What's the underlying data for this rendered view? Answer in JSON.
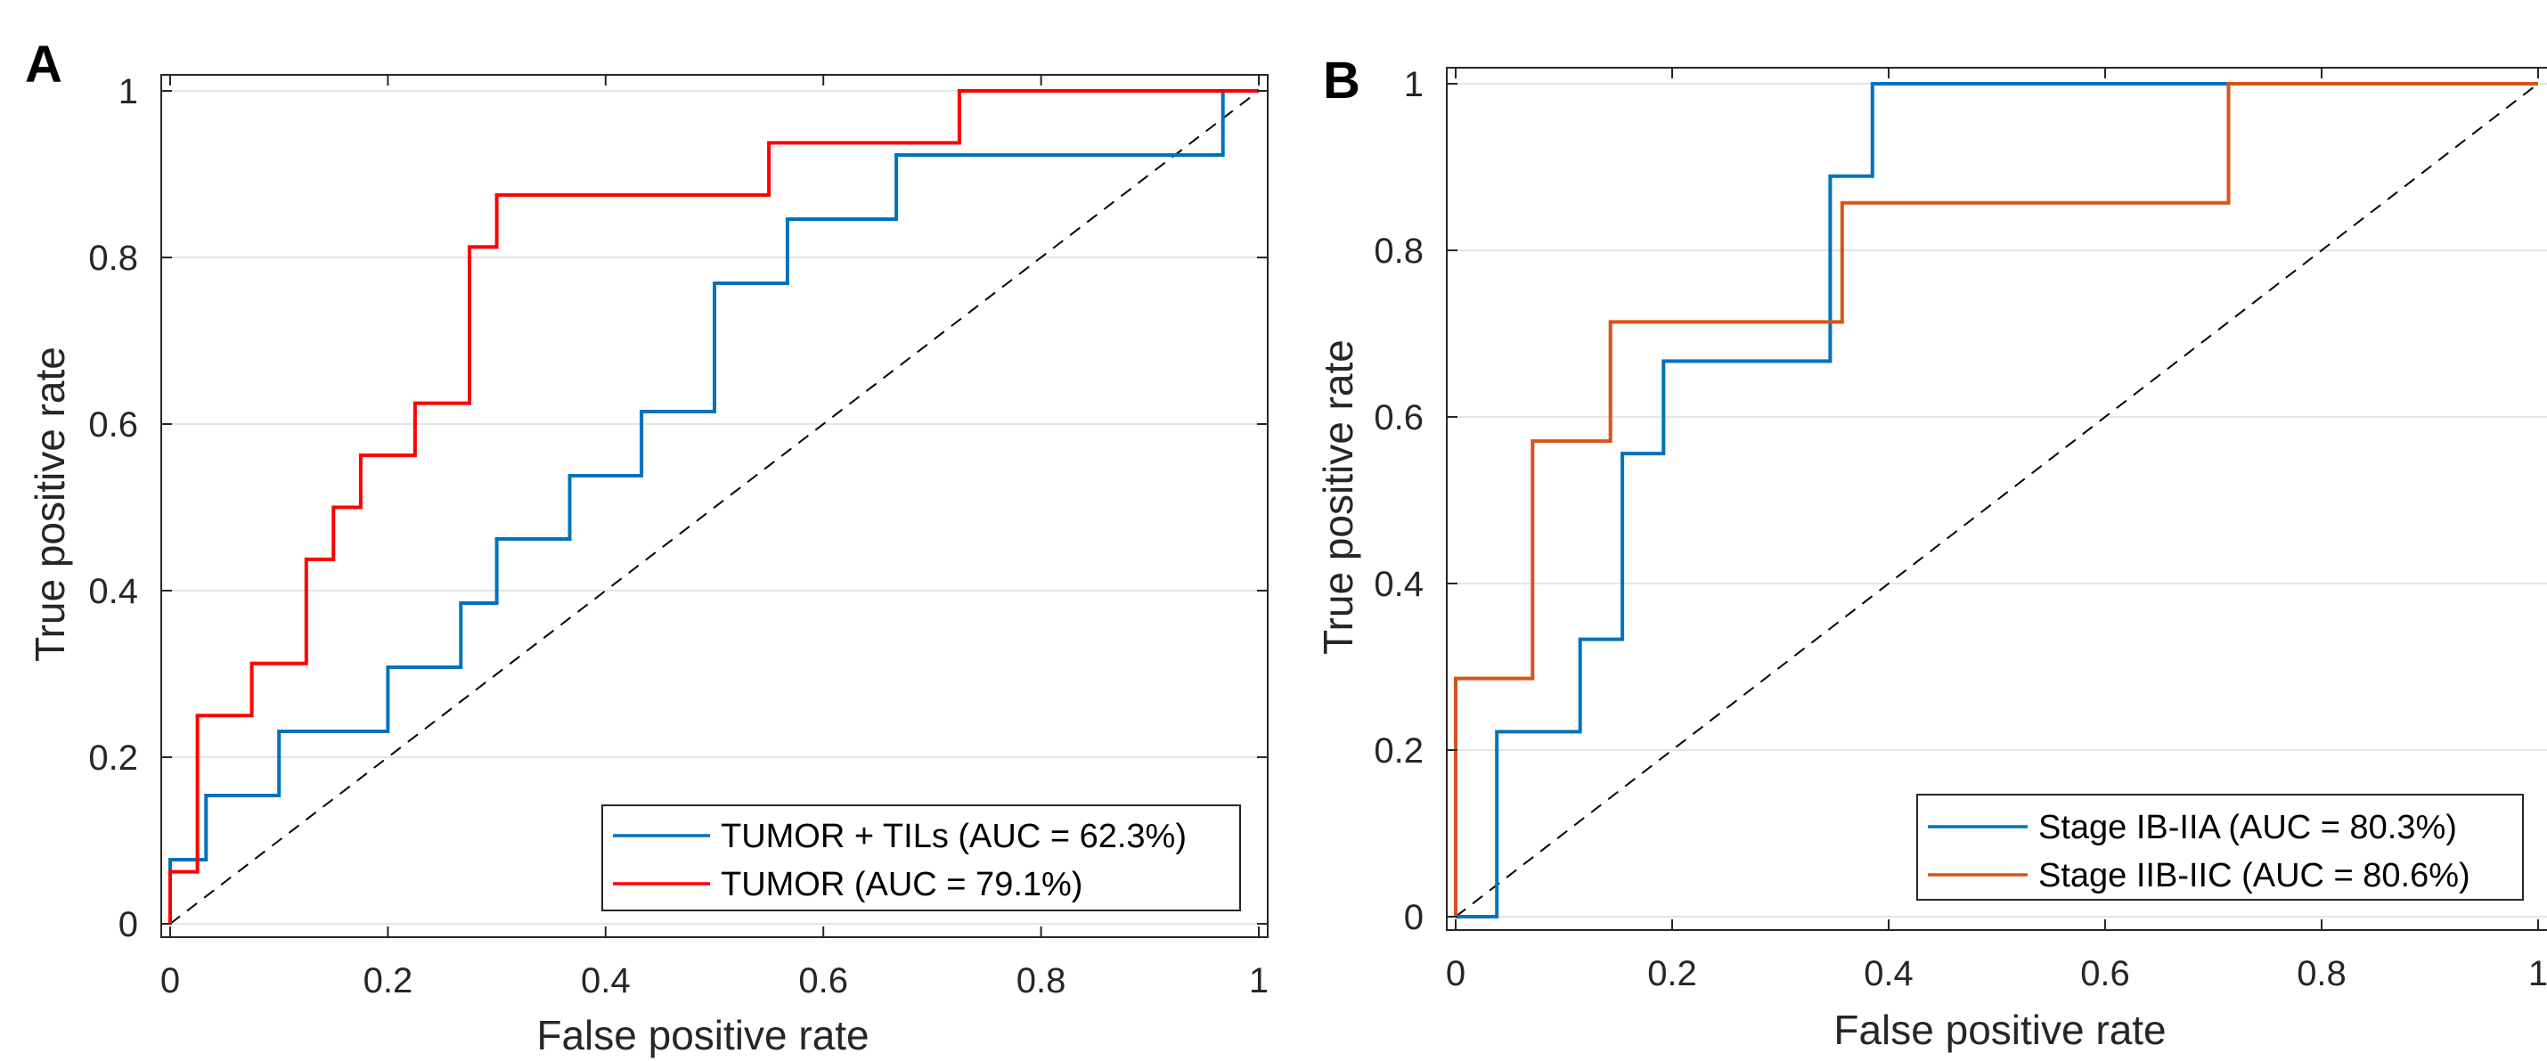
{
  "chart_data": [
    {
      "type": "line",
      "panel_label": "A",
      "xlabel": "False positive rate",
      "ylabel": "True positive rate",
      "xlim": [
        0,
        1
      ],
      "ylim": [
        0,
        1
      ],
      "xticks": [
        "0",
        "0.2",
        "0.4",
        "0.6",
        "0.8",
        "1"
      ],
      "yticks": [
        "0",
        "0.2",
        "0.4",
        "0.6",
        "0.8",
        "1"
      ],
      "grid": "horizontal",
      "legend_position": "bottom-right",
      "diagonal": true,
      "series": [
        {
          "name": "TUMOR + TILs (AUC = 62.3%)",
          "color": "#0072BD",
          "x": [
            0,
            0,
            0.033,
            0.033,
            0.1,
            0.1,
            0.2,
            0.2,
            0.267,
            0.267,
            0.3,
            0.3,
            0.367,
            0.367,
            0.433,
            0.433,
            0.5,
            0.5,
            0.567,
            0.567,
            0.667,
            0.667,
            0.967,
            0.967,
            1
          ],
          "y": [
            0,
            0.077,
            0.077,
            0.154,
            0.154,
            0.231,
            0.231,
            0.308,
            0.308,
            0.385,
            0.385,
            0.462,
            0.462,
            0.538,
            0.538,
            0.615,
            0.615,
            0.769,
            0.769,
            0.846,
            0.846,
            0.923,
            0.923,
            1,
            1
          ]
        },
        {
          "name": "TUMOR (AUC = 79.1%)",
          "color": "#FF0000",
          "x": [
            0,
            0,
            0.025,
            0.025,
            0.075,
            0.075,
            0.125,
            0.125,
            0.15,
            0.15,
            0.175,
            0.175,
            0.225,
            0.225,
            0.275,
            0.275,
            0.3,
            0.3,
            0.55,
            0.55,
            0.725,
            0.725,
            1
          ],
          "y": [
            0,
            0.0625,
            0.0625,
            0.25,
            0.25,
            0.3125,
            0.3125,
            0.4375,
            0.4375,
            0.5,
            0.5,
            0.5625,
            0.5625,
            0.625,
            0.625,
            0.8125,
            0.8125,
            0.875,
            0.875,
            0.9375,
            0.9375,
            1,
            1
          ]
        }
      ]
    },
    {
      "type": "line",
      "panel_label": "B",
      "xlabel": "False positive rate",
      "ylabel": "True positive rate",
      "xlim": [
        0,
        1
      ],
      "ylim": [
        0,
        1
      ],
      "xticks": [
        "0",
        "0.2",
        "0.4",
        "0.6",
        "0.8",
        "1"
      ],
      "yticks": [
        "0",
        "0.2",
        "0.4",
        "0.6",
        "0.8",
        "1"
      ],
      "grid": "horizontal",
      "legend_position": "bottom-right",
      "diagonal": true,
      "series": [
        {
          "name": "Stage IB-IIA (AUC = 80.3%)",
          "color": "#0072BD",
          "x": [
            0,
            0.038,
            0.038,
            0.115,
            0.115,
            0.154,
            0.154,
            0.192,
            0.192,
            0.346,
            0.346,
            0.385,
            0.385,
            1
          ],
          "y": [
            0,
            0,
            0.222,
            0.222,
            0.333,
            0.333,
            0.556,
            0.556,
            0.667,
            0.667,
            0.889,
            0.889,
            1,
            1
          ]
        },
        {
          "name": "Stage IIB-IIC  (AUC = 80.6%)",
          "color": "#D95319",
          "x": [
            0,
            0,
            0.071,
            0.071,
            0.143,
            0.143,
            0.357,
            0.357,
            0.714,
            0.714,
            1
          ],
          "y": [
            0,
            0.286,
            0.286,
            0.571,
            0.571,
            0.714,
            0.714,
            0.857,
            0.857,
            1,
            1
          ]
        }
      ]
    }
  ]
}
